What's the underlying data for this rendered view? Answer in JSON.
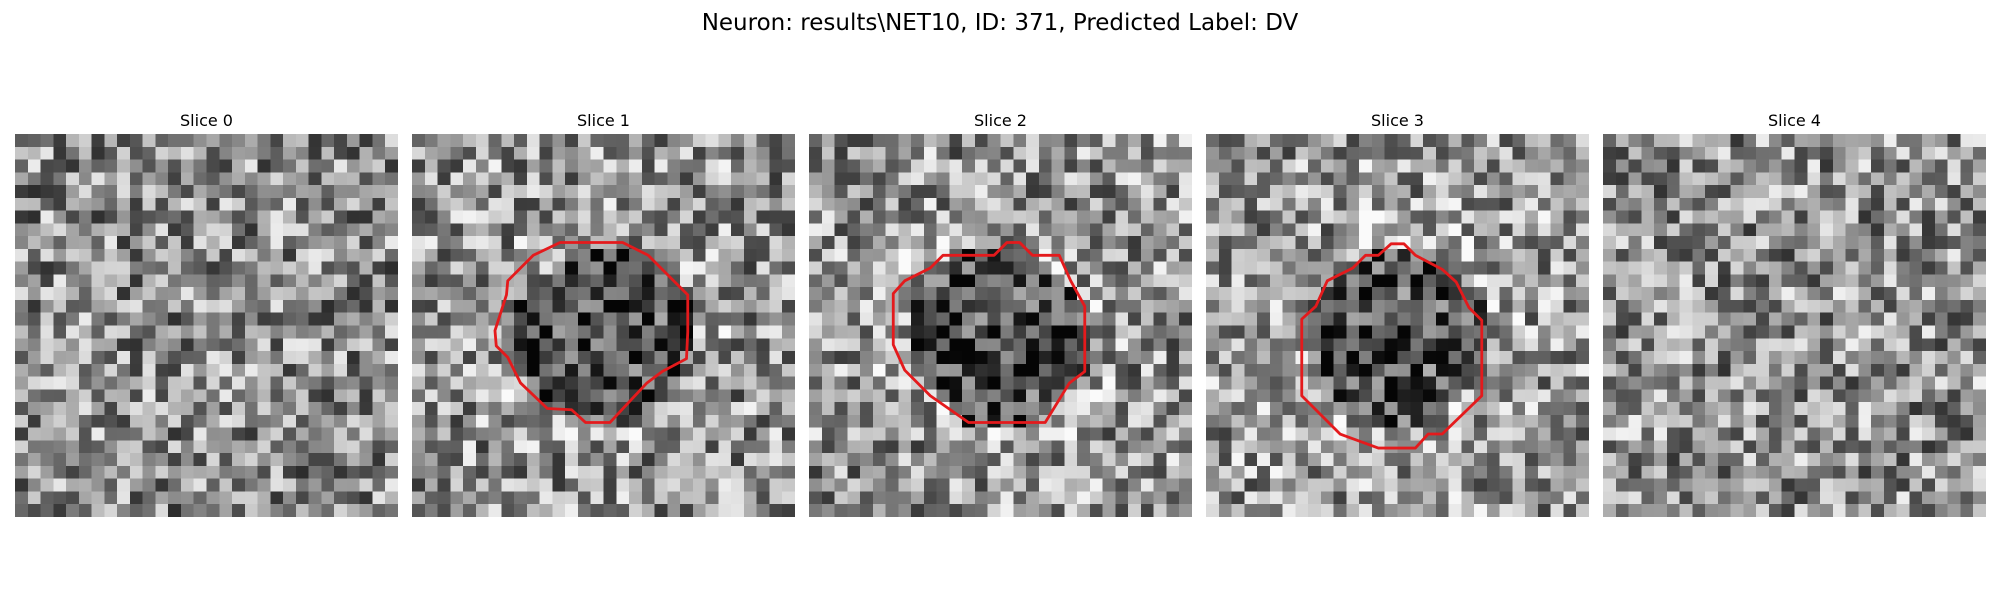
{
  "title": "Neuron: results\\NET10, ID: 371, Predicted Label: DV",
  "panels": [
    {
      "title": "Slice 0",
      "seed": 11,
      "dark_center": false,
      "base": 0.55,
      "contour": null
    },
    {
      "title": "Slice 1",
      "seed": 23,
      "dark_center": true,
      "base": 0.58,
      "contour": [
        [
          11.6,
          8.5
        ],
        [
          16.5,
          8.5
        ],
        [
          18.5,
          9.5
        ],
        [
          19.6,
          10.6
        ],
        [
          21.6,
          12.6
        ],
        [
          21.6,
          15.5
        ],
        [
          21.5,
          17.6
        ],
        [
          19.6,
          18.6
        ],
        [
          18.4,
          19.5
        ],
        [
          15.5,
          22.6
        ],
        [
          13.6,
          22.6
        ],
        [
          12.5,
          21.6
        ],
        [
          10.6,
          21.5
        ],
        [
          8.5,
          19.5
        ],
        [
          7.5,
          17.5
        ],
        [
          6.6,
          16.6
        ],
        [
          6.5,
          15.4
        ],
        [
          7.4,
          12.6
        ],
        [
          7.5,
          11.5
        ],
        [
          9.5,
          9.5
        ]
      ]
    },
    {
      "title": "Slice 2",
      "seed": 37,
      "dark_center": true,
      "base": 0.58,
      "contour": [
        [
          10.5,
          9.5
        ],
        [
          14.5,
          9.5
        ],
        [
          15.5,
          8.5
        ],
        [
          16.5,
          8.5
        ],
        [
          17.5,
          9.5
        ],
        [
          19.6,
          9.5
        ],
        [
          20.5,
          11.5
        ],
        [
          21.6,
          13.5
        ],
        [
          21.6,
          18.6
        ],
        [
          20.4,
          19.5
        ],
        [
          18.5,
          22.6
        ],
        [
          12.5,
          22.6
        ],
        [
          9.5,
          20.5
        ],
        [
          7.5,
          18.5
        ],
        [
          6.6,
          16.5
        ],
        [
          6.6,
          12.5
        ],
        [
          7.5,
          11.5
        ],
        [
          9.5,
          10.5
        ]
      ]
    },
    {
      "title": "Slice 3",
      "seed": 53,
      "dark_center": true,
      "base": 0.6,
      "contour": [
        [
          12.5,
          9.5
        ],
        [
          13.5,
          9.5
        ],
        [
          14.5,
          8.6
        ],
        [
          15.5,
          8.6
        ],
        [
          16.4,
          9.5
        ],
        [
          18.5,
          10.6
        ],
        [
          19.6,
          11.6
        ],
        [
          20.6,
          13.6
        ],
        [
          21.6,
          14.6
        ],
        [
          21.6,
          20.5
        ],
        [
          18.5,
          23.5
        ],
        [
          17.4,
          23.5
        ],
        [
          16.4,
          24.6
        ],
        [
          13.5,
          24.6
        ],
        [
          10.5,
          23.5
        ],
        [
          8.5,
          21.5
        ],
        [
          7.5,
          20.5
        ],
        [
          7.5,
          14.5
        ],
        [
          8.6,
          13.5
        ],
        [
          9.5,
          11.5
        ],
        [
          11.5,
          10.5
        ]
      ]
    },
    {
      "title": "Slice 4",
      "seed": 71,
      "dark_center": false,
      "base": 0.57,
      "contour": null
    }
  ],
  "colors": {
    "contour": "#e41a1c",
    "background": "#ffffff"
  }
}
